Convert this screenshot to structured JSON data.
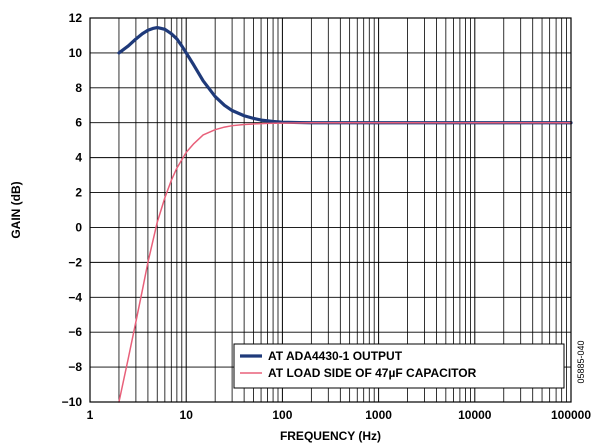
{
  "chart_data": {
    "type": "line",
    "title": "",
    "xlabel": "FREQUENCY (Hz)",
    "ylabel": "GAIN (dB)",
    "xscale": "log",
    "xlim": [
      1,
      100000
    ],
    "ylim": [
      -10,
      12
    ],
    "grid": true,
    "legend_position": "bottom-right",
    "x_tick_labels": [
      "1",
      "10",
      "100",
      "1000",
      "10000",
      "100000"
    ],
    "x_tick_values": [
      1,
      10,
      100,
      1000,
      10000,
      100000
    ],
    "y_tick_labels": [
      "−10",
      "−8",
      "−6",
      "−4",
      "−2",
      "0",
      "2",
      "4",
      "6",
      "8",
      "10",
      "12"
    ],
    "y_tick_values": [
      -10,
      -8,
      -6,
      -4,
      -2,
      0,
      2,
      4,
      6,
      8,
      10,
      12
    ],
    "side_annotation": "05885-040",
    "series": [
      {
        "name": "AT ADA4430-1 OUTPUT",
        "color": "#1f3a7a",
        "x": [
          2,
          2.5,
          3,
          3.5,
          4,
          4.5,
          5,
          5.5,
          6,
          7,
          8,
          9,
          10,
          12,
          15,
          20,
          25,
          30,
          40,
          50,
          60,
          80,
          100,
          150,
          200,
          300,
          500,
          1000,
          10000,
          100000
        ],
        "y": [
          10.0,
          10.4,
          10.8,
          11.1,
          11.3,
          11.4,
          11.45,
          11.4,
          11.35,
          11.1,
          10.8,
          10.4,
          10.0,
          9.3,
          8.4,
          7.5,
          7.0,
          6.7,
          6.4,
          6.25,
          6.15,
          6.07,
          6.03,
          6.01,
          6.0,
          6.0,
          6.0,
          6.0,
          6.0,
          6.0
        ]
      },
      {
        "name": "AT LOAD SIDE OF 47µF CAPACITOR",
        "color": "#e8607a",
        "x": [
          2,
          2.5,
          3,
          3.5,
          4,
          5,
          6,
          7,
          8,
          10,
          12,
          15,
          20,
          25,
          30,
          40,
          50,
          70,
          100,
          200,
          1000,
          10000,
          100000
        ],
        "y": [
          -10.0,
          -7.5,
          -5.4,
          -3.6,
          -2.0,
          0.3,
          1.7,
          2.7,
          3.4,
          4.3,
          4.8,
          5.3,
          5.6,
          5.75,
          5.83,
          5.9,
          5.93,
          5.96,
          5.98,
          6.0,
          6.0,
          6.0,
          6.0
        ]
      }
    ]
  }
}
